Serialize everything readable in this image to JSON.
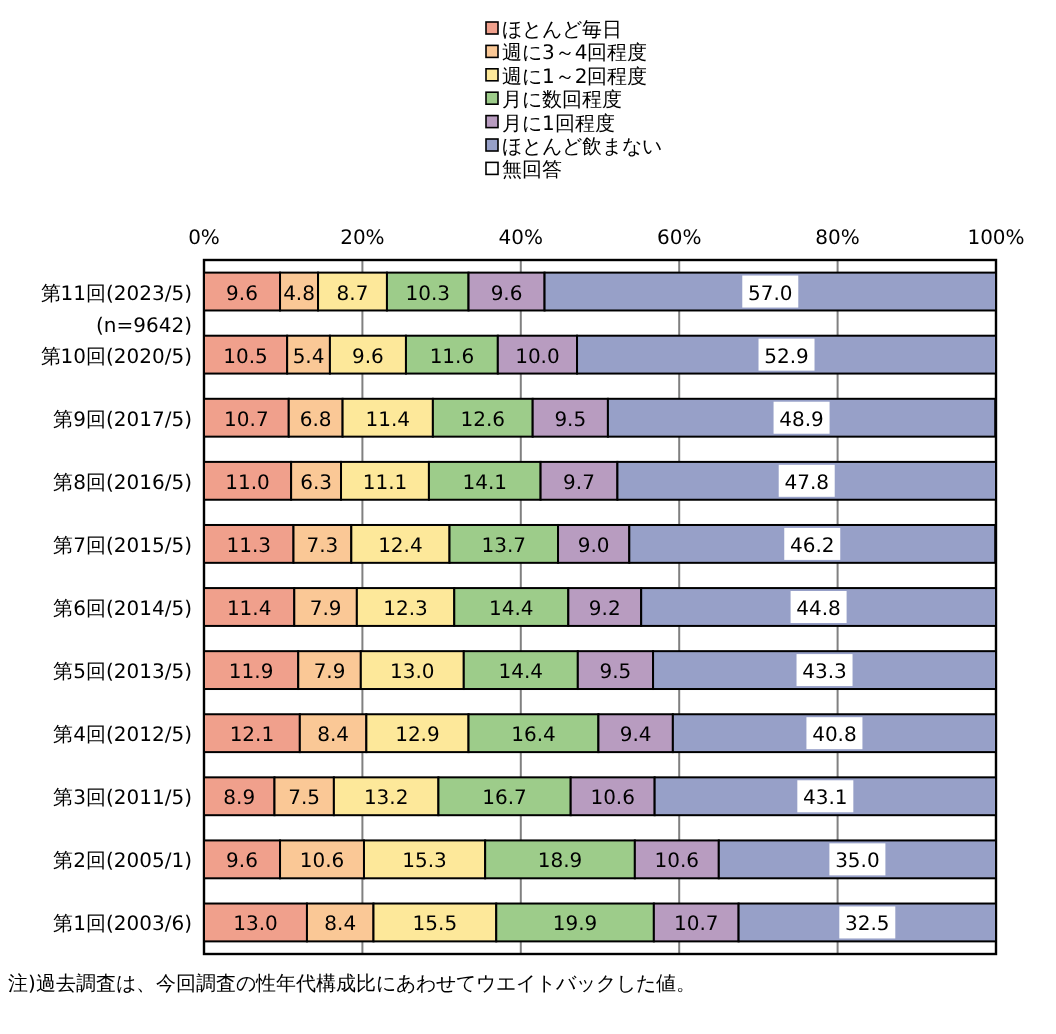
{
  "chart_data": {
    "type": "bar",
    "orientation": "horizontal",
    "stacked": true,
    "grid": "x",
    "legend": "top",
    "categories": [
      "第11回(2023/5)\n(n=9642)",
      "第10回(2020/5)",
      "第9回(2017/5)",
      "第8回(2016/5)",
      "第7回(2015/5)",
      "第6回(2014/5)",
      "第5回(2013/5)",
      "第4回(2012/5)",
      "第3回(2011/5)",
      "第2回(2005/1)",
      "第1回(2003/6)"
    ],
    "xlim": [
      0,
      100
    ],
    "xticks": [
      {
        "value": 0,
        "label": "0%"
      },
      {
        "value": 20,
        "label": "20%"
      },
      {
        "value": 40,
        "label": "40%"
      },
      {
        "value": 60,
        "label": "60%"
      },
      {
        "value": 80,
        "label": "80%"
      },
      {
        "value": 100,
        "label": "100%"
      }
    ],
    "series": [
      {
        "name": "ほとんど毎日",
        "color": "#f0a08c",
        "values": [
          9.6,
          10.5,
          10.7,
          11.0,
          11.3,
          11.4,
          11.9,
          12.1,
          8.9,
          9.6,
          13.0
        ],
        "value_labels": [
          "9.6",
          "10.5",
          "10.7",
          "11.0",
          "11.3",
          "11.4",
          "11.9",
          "12.1",
          "8.9",
          "9.6",
          "13.0"
        ]
      },
      {
        "name": "週に3～4回程度",
        "color": "#fac896",
        "values": [
          4.8,
          5.4,
          6.8,
          6.3,
          7.3,
          7.9,
          7.9,
          8.4,
          7.5,
          10.6,
          8.4
        ],
        "value_labels": [
          "4.8",
          "5.4",
          "6.8",
          "6.3",
          "7.3",
          "7.9",
          "7.9",
          "8.4",
          "7.5",
          "10.6",
          "8.4"
        ]
      },
      {
        "name": "週に1～2回程度",
        "color": "#fde89a",
        "values": [
          8.7,
          9.6,
          11.4,
          11.1,
          12.4,
          12.3,
          13.0,
          12.9,
          13.2,
          15.3,
          15.5
        ],
        "value_labels": [
          "8.7",
          "9.6",
          "11.4",
          "11.1",
          "12.4",
          "12.3",
          "13.0",
          "12.9",
          "13.2",
          "15.3",
          "15.5"
        ]
      },
      {
        "name": "月に数回程度",
        "color": "#9dcc8a",
        "values": [
          10.3,
          11.6,
          12.6,
          14.1,
          13.7,
          14.4,
          14.4,
          16.4,
          16.7,
          18.9,
          19.9
        ],
        "value_labels": [
          "10.3",
          "11.6",
          "12.6",
          "14.1",
          "13.7",
          "14.4",
          "14.4",
          "16.4",
          "16.7",
          "18.9",
          "19.9"
        ]
      },
      {
        "name": "月に1回程度",
        "color": "#b89cc0",
        "values": [
          9.6,
          10.0,
          9.5,
          9.7,
          9.0,
          9.2,
          9.5,
          9.4,
          10.6,
          10.6,
          10.7
        ],
        "value_labels": [
          "9.6",
          "10.0",
          "9.5",
          "9.7",
          "9.0",
          "9.2",
          "9.5",
          "9.4",
          "10.6",
          "10.6",
          "10.7"
        ]
      },
      {
        "name": "ほとんど飲まない",
        "color": "#97a0c8",
        "values": [
          57.0,
          52.9,
          48.9,
          47.8,
          46.2,
          44.8,
          43.3,
          40.8,
          43.1,
          35.0,
          32.5
        ],
        "value_labels": [
          "57.0",
          "52.9",
          "48.9",
          "47.8",
          "46.2",
          "44.8",
          "43.3",
          "40.8",
          "43.1",
          "35.0",
          "32.5"
        ]
      },
      {
        "name": "無回答",
        "color": "#ffffff",
        "values": [
          null,
          null,
          null,
          null,
          null,
          null,
          null,
          null,
          null,
          null,
          null
        ]
      }
    ],
    "annotations": [
      "注)過去調査は、今回調査の性年代構成比にあわせてウエイトバックした値。"
    ]
  }
}
